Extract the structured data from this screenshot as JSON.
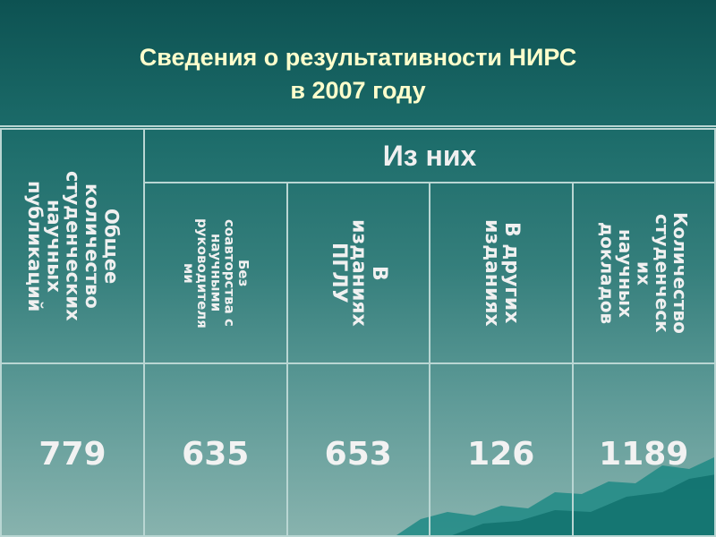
{
  "title": {
    "line1": "Сведения о результативности НИРС",
    "line2": "в 2007 году"
  },
  "table": {
    "group_header": "Из них",
    "headers": [
      {
        "lines": [
          "Общее",
          "количество",
          "студенческих",
          "научных",
          "публикаций"
        ]
      },
      {
        "lines": [
          "Без",
          "соавторства с",
          "научными",
          "руководителя",
          "ми"
        ]
      },
      {
        "lines": [
          "В",
          "изданиях",
          "ПГЛУ"
        ]
      },
      {
        "lines": [
          "В других",
          "изданиях"
        ]
      },
      {
        "lines": [
          "Количество",
          "студенческ",
          "их",
          "научных",
          "докладов"
        ]
      }
    ],
    "values": [
      "779",
      "635",
      "653",
      "126",
      "1189"
    ]
  },
  "colors": {
    "title": "#ffffcc",
    "background_top": "#0d5252",
    "background_bottom": "#88b3ae"
  }
}
